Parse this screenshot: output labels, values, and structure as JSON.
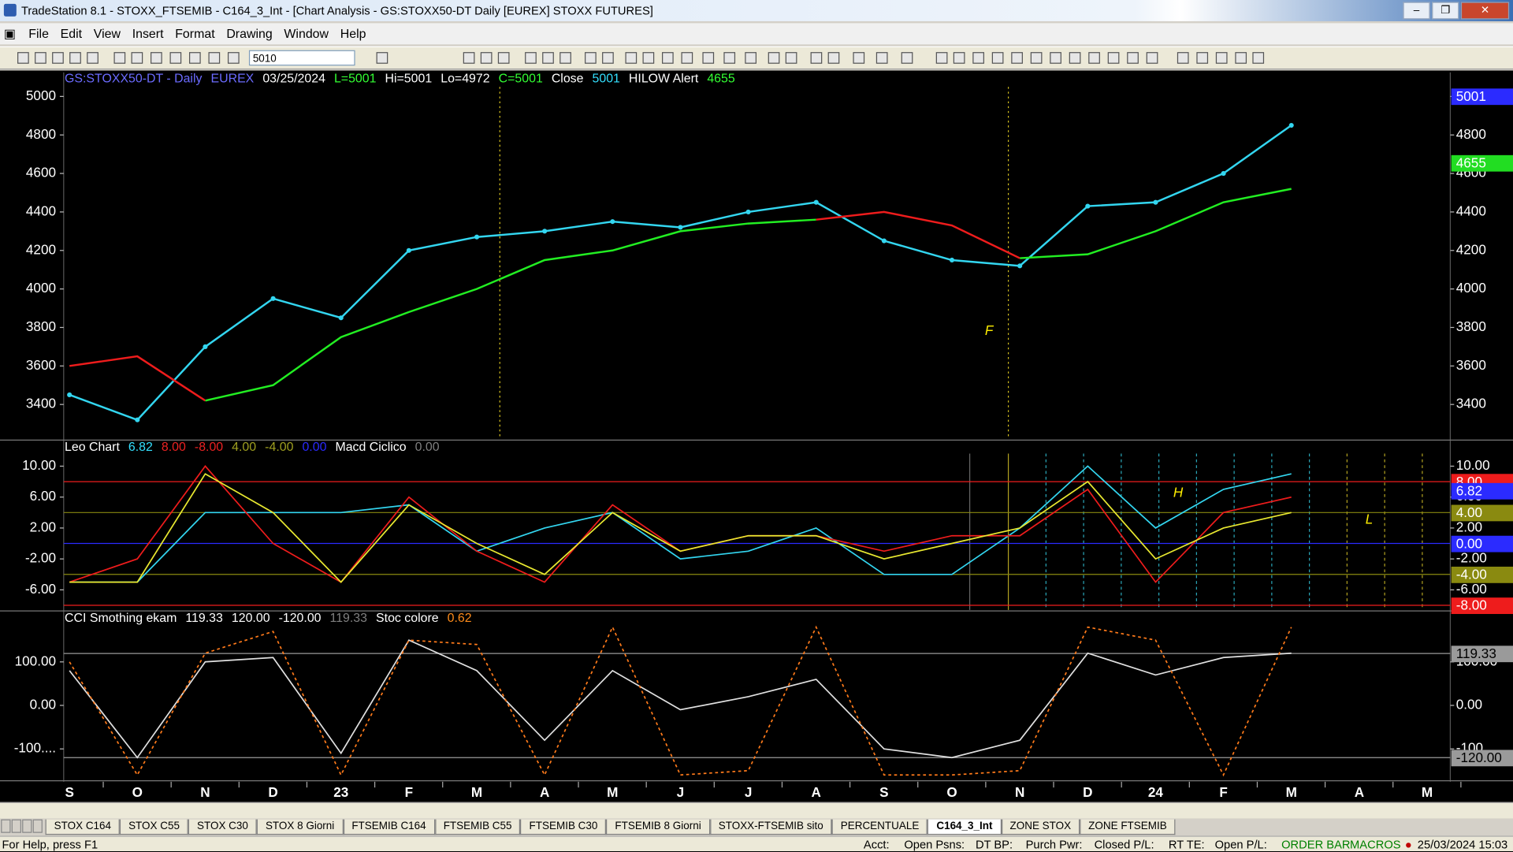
{
  "window": {
    "title": "TradeStation 8.1 - STOXX_FTSEMIB - C164_3_Int - [Chart Analysis - GS:STOXX50-DT  Daily  [EUREX] STOXX FUTURES]"
  },
  "menu": [
    "File",
    "Edit",
    "View",
    "Insert",
    "Format",
    "Drawing",
    "Window",
    "Help"
  ],
  "toolbar": {
    "symbol": "5010"
  },
  "chart_data": [
    {
      "type": "line",
      "header": [
        {
          "text": "GS:STOXX50-DT - Daily",
          "color": "#6b6bff"
        },
        {
          "text": "EUREX",
          "color": "#6b6bff"
        },
        {
          "text": "03/25/2024",
          "color": "#ffffff"
        },
        {
          "text": "L=5001",
          "color": "#33ff33"
        },
        {
          "text": "Hi=5001",
          "color": "#ffffff"
        },
        {
          "text": "Lo=4972",
          "color": "#ffffff"
        },
        {
          "text": "C=5001",
          "color": "#33ff33"
        },
        {
          "text": "Close",
          "color": "#ffffff"
        },
        {
          "text": "5001",
          "color": "#33e0ff"
        },
        {
          "text": "HILOW Alert",
          "color": "#ffffff"
        },
        {
          "text": "4655",
          "color": "#33ff33"
        }
      ],
      "categories": [
        "S",
        "O",
        "N",
        "D",
        "23",
        "F",
        "M",
        "A",
        "M",
        "J",
        "J",
        "A",
        "S",
        "O",
        "N",
        "D",
        "24",
        "F",
        "M",
        "A",
        "M"
      ],
      "series": [
        {
          "color": "#33d6f0",
          "markers": true,
          "values": [
            3450,
            3320,
            3700,
            3950,
            3850,
            4200,
            4270,
            4300,
            4350,
            4320,
            4400,
            4450,
            4250,
            4150,
            4120,
            4430,
            4450,
            4600,
            4850,
            null,
            null
          ]
        },
        {
          "color": "#22ee22",
          "markers": false,
          "values": [
            null,
            null,
            3420,
            3500,
            3750,
            3880,
            4000,
            4150,
            4200,
            4300,
            4340,
            4360,
            null,
            null,
            4160,
            4180,
            4300,
            4450,
            4520,
            null,
            null
          ]
        },
        {
          "color": "#ee1c1c",
          "markers": false,
          "values": [
            3600,
            3650,
            3420,
            null,
            null,
            null,
            null,
            null,
            null,
            null,
            null,
            4360,
            4400,
            4330,
            4160,
            null,
            null,
            null,
            null,
            null,
            null
          ]
        }
      ],
      "markers": [
        {
          "value": 5001,
          "color": "#2b2bff"
        },
        {
          "value": 4655,
          "color": "#22dd22"
        }
      ],
      "annotations": [
        {
          "text": "F",
          "color": "#ffee00"
        }
      ],
      "ylim": [
        3220,
        5125
      ],
      "yticks": [
        3400,
        3600,
        3800,
        4000,
        4200,
        4400,
        4600,
        4800,
        5000
      ]
    },
    {
      "type": "line",
      "header": [
        {
          "text": "Leo Chart",
          "color": "#ffffff"
        },
        {
          "text": "6.82",
          "color": "#33e0ff"
        },
        {
          "text": "8.00",
          "color": "#ee2222"
        },
        {
          "text": "-8.00",
          "color": "#ee2222"
        },
        {
          "text": "4.00",
          "color": "#a0a020"
        },
        {
          "text": "-4.00",
          "color": "#a0a020"
        },
        {
          "text": "0.00",
          "color": "#2a2aff"
        },
        {
          "text": "Macd Ciclico",
          "color": "#ffffff"
        },
        {
          "text": "0.00",
          "color": "#808080"
        }
      ],
      "series": [
        {
          "color": "#33d6f0",
          "values": [
            -5,
            -5,
            4,
            4,
            4,
            5,
            -1,
            2,
            4,
            -2,
            -1,
            2,
            -4,
            -4,
            2,
            10,
            2,
            7,
            9,
            null,
            null
          ]
        },
        {
          "color": "#ee1c1c",
          "values": [
            -5,
            -2,
            10,
            0,
            -5,
            6,
            -1,
            -5,
            5,
            -1,
            1,
            1,
            -1,
            1,
            1,
            7,
            -5,
            4,
            6,
            null,
            null
          ]
        },
        {
          "color": "#e8e830",
          "values": [
            -5,
            -5,
            9,
            4,
            -5,
            5,
            0,
            -4,
            4,
            -1,
            1,
            1,
            -2,
            0,
            2,
            8,
            -2,
            2,
            4,
            null,
            null
          ]
        }
      ],
      "markers": [
        {
          "value": 8,
          "label": "8.00",
          "color": "#ee1c1c"
        },
        {
          "value": 6.82,
          "color": "#2b2bff"
        },
        {
          "value": 4,
          "label": "4.00",
          "color": "#8a8a10"
        },
        {
          "value": 0,
          "label": "0.00",
          "color": "#2b2bff"
        },
        {
          "value": -4,
          "label": "-4.00",
          "color": "#8a8a10"
        },
        {
          "value": -8,
          "label": "-8.00",
          "color": "#ee1c1c"
        }
      ],
      "annotations": [
        {
          "text": "H",
          "color": "#ffee00"
        },
        {
          "text": "L",
          "color": "#ffee00"
        }
      ],
      "ylim": [
        -8.6,
        13.25
      ],
      "yticks": [
        {
          "value": -6,
          "label": "-6.00"
        },
        {
          "value": -2,
          "label": "-2.00"
        },
        {
          "value": 2,
          "label": "2.00"
        },
        {
          "value": 6,
          "label": "6.00"
        },
        {
          "value": 10,
          "label": "10.00"
        }
      ]
    },
    {
      "type": "line",
      "header": [
        {
          "text": "CCI Smothing ekam",
          "color": "#ffffff"
        },
        {
          "text": "119.33",
          "color": "#ffffff"
        },
        {
          "text": "120.00",
          "color": "#ffffff"
        },
        {
          "text": "-120.00",
          "color": "#ffffff"
        },
        {
          "text": "119.33",
          "color": "#808080"
        },
        {
          "text": "Stoc colore",
          "color": "#ffffff"
        },
        {
          "text": "0.62",
          "color": "#ff8c1a"
        }
      ],
      "series": [
        {
          "color": "#e0e0e0",
          "values": [
            80,
            -120,
            100,
            110,
            -110,
            150,
            80,
            -80,
            80,
            -10,
            20,
            60,
            -100,
            -120,
            -80,
            120,
            70,
            110,
            120,
            null,
            null
          ]
        },
        {
          "color": "#ff7a1a",
          "dash": true,
          "values": [
            100,
            -160,
            120,
            170,
            -160,
            150,
            140,
            -160,
            180,
            -160,
            -150,
            180,
            -160,
            -160,
            -150,
            180,
            150,
            -160,
            180,
            null,
            null
          ]
        }
      ],
      "markers": [
        {
          "value": 119.33,
          "color": "#9a9a9a"
        },
        {
          "value": -120,
          "label": "-120.00",
          "color": "#9a9a9a"
        }
      ],
      "ylim": [
        -171,
        215
      ],
      "yticks": [
        {
          "value": -100,
          "label": "-100...."
        },
        {
          "value": 0,
          "label": "0.00"
        },
        {
          "value": 100,
          "label": "100.00"
        }
      ]
    }
  ],
  "tabs": [
    "STOX C164",
    "STOX C55",
    "STOX  C30",
    "STOX  8 Giorni",
    "FTSEMIB C164",
    "FTSEMIB C55",
    "FTSEMIB C30",
    "FTSEMIB  8 Giorni",
    "STOXX-FTSEMIB sito",
    "PERCENTUALE",
    "C164_3_Int",
    "ZONE STOX",
    "ZONE FTSEMIB"
  ],
  "active_tab": "C164_3_Int",
  "status": {
    "help": "For Help, press F1",
    "fields": [
      "Acct:",
      "Open Psns:",
      "DT BP:",
      "Purch Pwr:",
      "Closed P/L:",
      "RT TE:",
      "Open P/L:"
    ],
    "order_bar": "ORDER BAR",
    "macros": "MACROS",
    "datetime": "25/03/2024 15:03"
  }
}
